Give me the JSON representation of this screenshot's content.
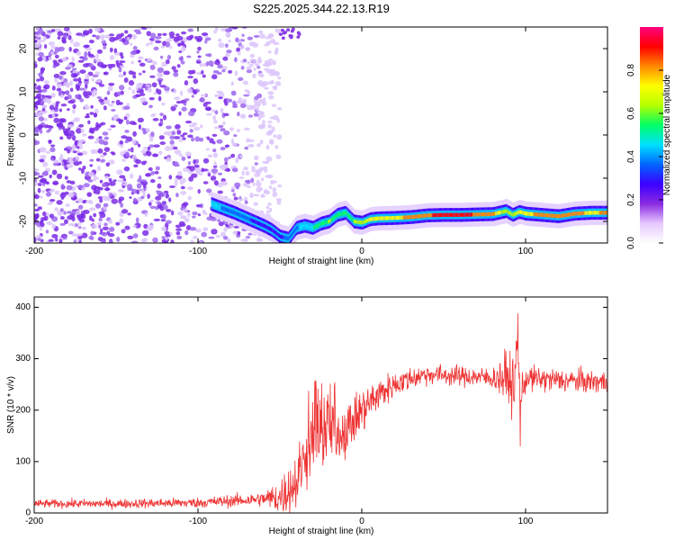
{
  "title": "S225.2025.344.22.13.R19",
  "chart_data": [
    {
      "type": "heatmap",
      "xlabel": "Height of straight line (km)",
      "ylabel": "Frequency (Hz)",
      "xlim": [
        -200,
        150
      ],
      "ylim": [
        -25,
        25
      ],
      "xticks": [
        -200,
        -100,
        0,
        100
      ],
      "xtick_labels": [
        "-200",
        "-100",
        "0",
        "100"
      ],
      "yticks": [
        -20,
        -10,
        0,
        10,
        20
      ],
      "ytick_labels": [
        "-20",
        "-10",
        "0",
        "10",
        "20"
      ],
      "colorbar": {
        "label": "Normalized spectral amplitude",
        "range": [
          0,
          1
        ],
        "ticks": [
          0,
          0.2,
          0.4,
          0.6,
          0.8
        ],
        "tick_labels": [
          "0.0",
          "0.2",
          "0.4",
          "0.6",
          "0.8"
        ],
        "colors": [
          "#ffffff",
          "#e6c8ff",
          "#8a2be2",
          "#3c00ff",
          "#0066ff",
          "#00e0ff",
          "#00ff66",
          "#b4ff00",
          "#ffff00",
          "#ff8800",
          "#ff0000",
          "#ff0080"
        ]
      },
      "ridge": {
        "x": [
          -92,
          -85,
          -78,
          -72,
          -66,
          -60,
          -55,
          -50,
          -45,
          -40,
          -35,
          -30,
          -25,
          -20,
          -15,
          -10,
          -5,
          0,
          5,
          10,
          20,
          30,
          40,
          50,
          60,
          70,
          80,
          88,
          92,
          96,
          100,
          110,
          120,
          130,
          140,
          150
        ],
        "y": [
          -16,
          -17,
          -18,
          -19,
          -20,
          -21,
          -22,
          -23.5,
          -24,
          -21.5,
          -21,
          -21.5,
          -20.5,
          -20,
          -18.5,
          -18,
          -20,
          -20.3,
          -19.5,
          -19.3,
          -19.2,
          -19,
          -18.6,
          -18.5,
          -18.5,
          -18.4,
          -18.3,
          -17.6,
          -18.5,
          -17.8,
          -18.2,
          -18.5,
          -18.8,
          -18.2,
          -18,
          -18
        ],
        "amplitude": [
          0.45,
          0.4,
          0.35,
          0.35,
          0.3,
          0.3,
          0.3,
          0.3,
          0.35,
          0.4,
          0.45,
          0.5,
          0.55,
          0.6,
          0.55,
          0.5,
          0.6,
          0.65,
          0.7,
          0.7,
          0.75,
          0.8,
          0.85,
          0.9,
          0.9,
          0.85,
          0.8,
          0.6,
          0.65,
          0.7,
          0.75,
          0.8,
          0.85,
          0.8,
          0.75,
          0.8
        ]
      }
    },
    {
      "type": "line",
      "xlabel": "Height of straight line (km)",
      "ylabel": "SNR (10 * v/v)",
      "xlim": [
        -200,
        150
      ],
      "ylim": [
        0,
        420
      ],
      "xticks": [
        -200,
        -100,
        0,
        100
      ],
      "xtick_labels": [
        "-200",
        "-100",
        "0",
        "100"
      ],
      "yticks": [
        0,
        100,
        200,
        300,
        400
      ],
      "ytick_labels": [
        "0",
        "100",
        "200",
        "300",
        "400"
      ],
      "color": "#ee3333",
      "trend": {
        "x": [
          -200,
          -150,
          -100,
          -70,
          -50,
          -40,
          -35,
          -30,
          -20,
          -10,
          0,
          10,
          20,
          30,
          40,
          50,
          60,
          70,
          80,
          90,
          93,
          95,
          97,
          100,
          110,
          120,
          130,
          140,
          150
        ],
        "y": [
          18,
          18,
          20,
          25,
          30,
          60,
          110,
          130,
          150,
          160,
          200,
          230,
          250,
          262,
          270,
          268,
          266,
          265,
          262,
          262,
          240,
          300,
          220,
          262,
          260,
          258,
          257,
          255,
          255
        ]
      },
      "noise": {
        "x": [
          -200,
          -100,
          -60,
          -40,
          -20,
          0,
          20,
          40,
          80,
          90,
          100,
          150
        ],
        "amplitude": [
          8,
          10,
          14,
          60,
          55,
          45,
          25,
          20,
          20,
          60,
          25,
          22
        ]
      }
    }
  ]
}
